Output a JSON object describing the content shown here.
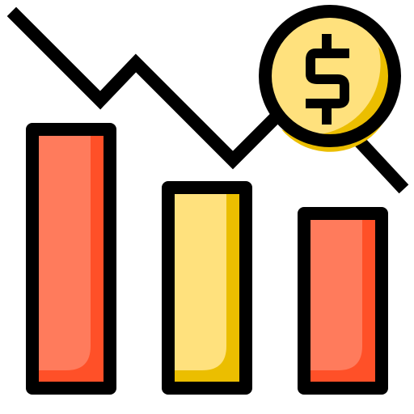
{
  "icon": {
    "name": "declining-finance-chart-icon",
    "symbol": "$",
    "colors": {
      "outline": "#000000",
      "red_fill": "#FF7B5C",
      "red_shade": "#FF5028",
      "yellow_fill": "#FFE17D",
      "yellow_shade": "#EBBE00",
      "background": "#FFFFFF"
    }
  }
}
